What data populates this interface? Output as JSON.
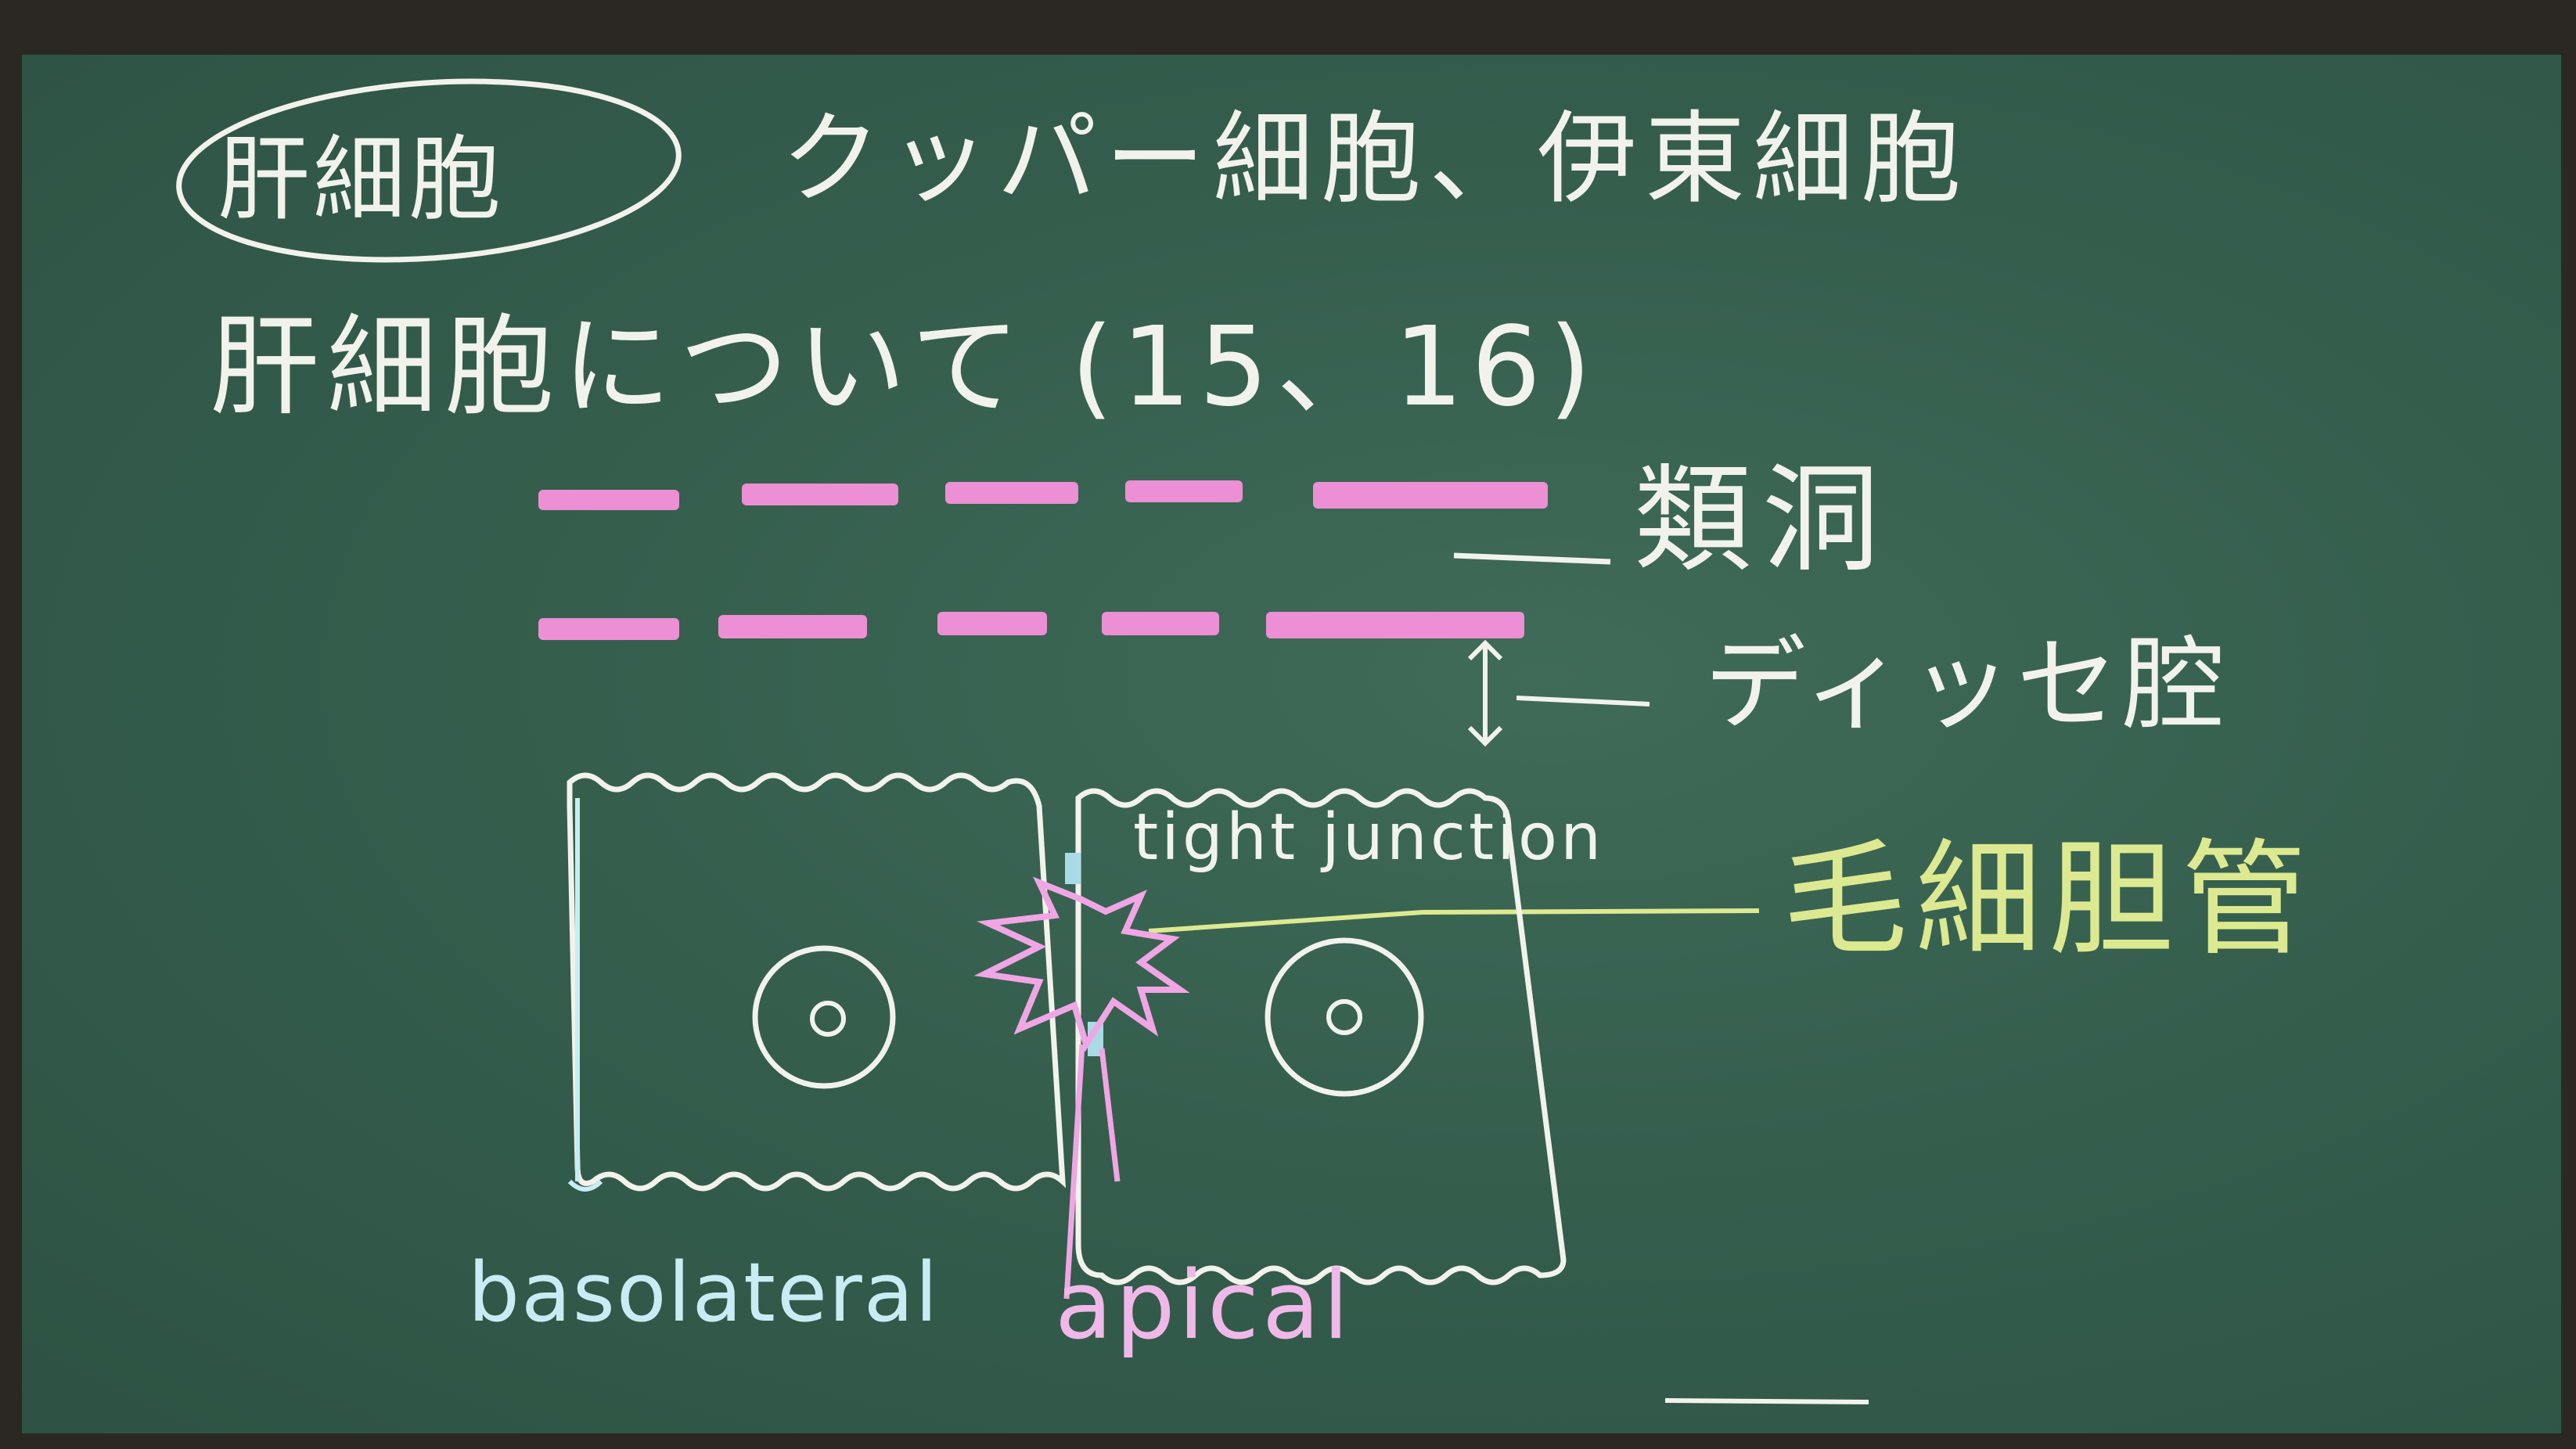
{
  "board": {
    "header_circled": "肝細胞",
    "header_rest": "クッパー細胞、伊東細胞",
    "subtitle": "肝細胞について (15、16)",
    "labels": {
      "sinusoid": "類洞",
      "disse_space": "ディッセ腔",
      "tight_junction": "tight junction",
      "bile_canaliculus": "毛細胆管",
      "basolateral": "basolateral",
      "apical": "apical"
    },
    "colors": {
      "board": "#355e4d",
      "chalk_white": "#f2f2ec",
      "chalk_pink": "#f090d8",
      "chalk_yellow": "#dde990",
      "chalk_blue": "#c9ecf4"
    }
  }
}
